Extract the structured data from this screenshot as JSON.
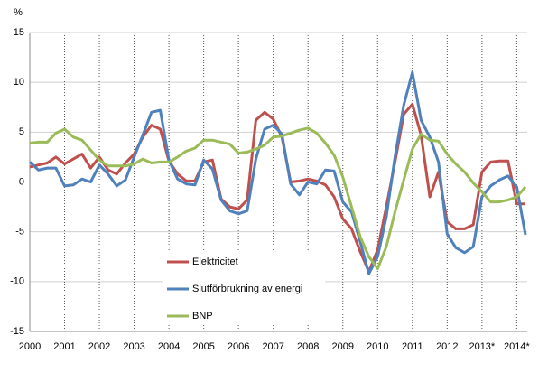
{
  "chart_data": {
    "type": "line",
    "y_label": "%",
    "categories": [
      "2000",
      null,
      null,
      null,
      "2001",
      null,
      null,
      null,
      "2002",
      null,
      null,
      null,
      "2003",
      null,
      null,
      null,
      "2004",
      null,
      null,
      null,
      "2005",
      null,
      null,
      null,
      "2006",
      null,
      null,
      null,
      "2007",
      null,
      null,
      null,
      "2008",
      null,
      null,
      null,
      "2009",
      null,
      null,
      null,
      "2010",
      null,
      null,
      null,
      "2011",
      null,
      null,
      null,
      "2012",
      null,
      null,
      null,
      "2013*",
      null,
      null,
      null,
      "2014*",
      null
    ],
    "series": [
      {
        "name": "Elektricitet",
        "color": "#c0504d",
        "values": [
          1.5,
          1.7,
          1.9,
          2.5,
          1.8,
          2.3,
          2.8,
          1.4,
          2.5,
          1.2,
          0.8,
          1.9,
          2.8,
          4.5,
          5.7,
          5.3,
          2.1,
          0.8,
          0.1,
          0.1,
          2.0,
          2.2,
          -1.7,
          -2.5,
          -2.7,
          -1.8,
          6.2,
          7.0,
          6.3,
          4.5,
          0.0,
          0.1,
          0.3,
          0.1,
          -0.3,
          -1.5,
          -3.7,
          -4.7,
          -7.0,
          -9.0,
          -6.8,
          -2.5,
          2.0,
          6.8,
          7.8,
          4.7,
          -1.5,
          1.0,
          -4.0,
          -4.7,
          -4.7,
          -4.3,
          1.0,
          2.0,
          2.1,
          2.1,
          -2.2,
          -2.2
        ]
      },
      {
        "name": "Slutförbrukning av energi",
        "color": "#4f81bd",
        "values": [
          2.0,
          1.2,
          1.4,
          1.4,
          -0.4,
          -0.3,
          0.3,
          0.0,
          1.7,
          0.8,
          -0.4,
          0.2,
          2.5,
          4.7,
          7.0,
          7.2,
          2.2,
          0.3,
          -0.2,
          -0.3,
          2.2,
          1.3,
          -1.8,
          -2.9,
          -3.2,
          -2.9,
          2.3,
          5.3,
          5.7,
          4.8,
          -0.2,
          -1.3,
          0.0,
          -0.2,
          1.2,
          1.1,
          -2.0,
          -3.0,
          -6.0,
          -9.2,
          -7.5,
          -3.5,
          2.5,
          7.7,
          11.0,
          6.2,
          4.5,
          2.0,
          -5.2,
          -6.6,
          -7.1,
          -6.5,
          -1.5,
          -0.4,
          0.2,
          0.6,
          -0.5,
          -5.3
        ]
      },
      {
        "name": "BNP",
        "color": "#9bbb59",
        "values": [
          3.9,
          4.0,
          4.0,
          4.9,
          5.3,
          4.5,
          4.2,
          3.2,
          2.2,
          1.6,
          1.6,
          1.6,
          1.8,
          2.3,
          1.9,
          2.0,
          2.0,
          2.5,
          3.1,
          3.4,
          4.2,
          4.2,
          4.0,
          3.8,
          2.9,
          3.0,
          3.3,
          3.7,
          4.5,
          4.6,
          4.9,
          5.2,
          5.4,
          4.9,
          3.9,
          2.7,
          0.5,
          -2.5,
          -5.5,
          -7.5,
          -8.7,
          -6.5,
          -3.0,
          0.2,
          3.3,
          4.8,
          4.2,
          4.1,
          2.8,
          1.8,
          1.0,
          -0.1,
          -1.0,
          -2.0,
          -2.0,
          -1.8,
          -1.5,
          -0.5
        ]
      }
    ],
    "ylim": [
      -15,
      15
    ],
    "yticks": [
      -15,
      -10,
      -5,
      0,
      5,
      10,
      15
    ],
    "grid": true
  }
}
